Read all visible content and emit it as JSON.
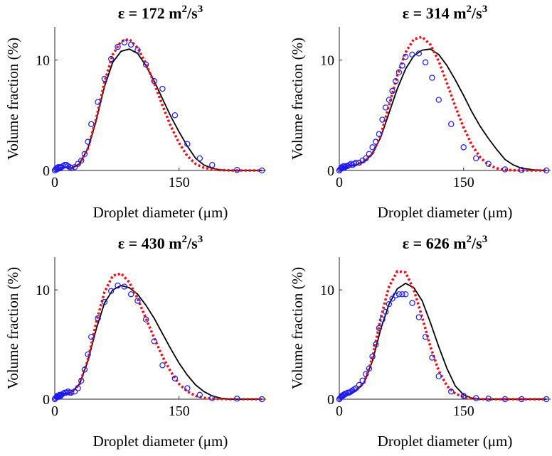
{
  "chart_data": [
    {
      "type": "line",
      "title": "ε = 172 m²/s³",
      "title_parts": [
        "ε = 172 m",
        "2",
        "/s",
        "3"
      ],
      "xlabel": "Droplet diameter (μm)",
      "ylabel": "Volume fraction (%)",
      "xlim": [
        0,
        255
      ],
      "ylim": [
        0,
        13
      ],
      "xticks": [
        0,
        150
      ],
      "yticks": [
        0,
        10
      ],
      "series": [
        {
          "style": "line",
          "color": "#000000",
          "x": [
            0,
            10,
            20,
            30,
            40,
            50,
            60,
            70,
            80,
            90,
            100,
            110,
            120,
            130,
            140,
            150,
            160,
            170,
            180,
            190,
            200,
            210,
            220,
            235,
            250
          ],
          "y": [
            0,
            0.3,
            0.2,
            0.6,
            2.0,
            4.5,
            7.6,
            9.8,
            10.8,
            11.0,
            10.6,
            9.5,
            8.1,
            6.5,
            4.9,
            3.5,
            2.2,
            1.1,
            0.5,
            0.2,
            0.05,
            0,
            0,
            0,
            0
          ]
        },
        {
          "style": "dotted",
          "color": "#e8141b",
          "x": [
            0,
            10,
            20,
            30,
            40,
            50,
            60,
            70,
            80,
            90,
            100,
            110,
            120,
            130,
            140,
            150,
            160,
            170,
            180,
            190,
            200,
            215,
            235,
            250
          ],
          "y": [
            0,
            0.3,
            0.2,
            0.6,
            2.0,
            4.7,
            8.0,
            10.5,
            11.7,
            11.9,
            11.1,
            9.7,
            7.9,
            5.9,
            4.0,
            2.5,
            1.3,
            0.6,
            0.25,
            0.1,
            0.03,
            0,
            0,
            0
          ]
        },
        {
          "style": "markers",
          "color": "#1a1aff",
          "x": [
            0,
            1,
            2,
            3,
            4,
            5,
            6,
            7,
            8,
            10,
            12,
            14,
            16,
            18,
            20,
            24,
            28,
            32,
            36,
            40,
            44,
            52,
            60,
            68,
            76,
            84,
            92,
            100,
            110,
            120,
            130,
            145,
            160,
            175,
            190,
            220,
            250
          ],
          "y": [
            0,
            0.1,
            0.2,
            0.1,
            0.3,
            0.2,
            0.3,
            0.2,
            0.3,
            0.4,
            0.5,
            0.5,
            0.4,
            0.3,
            0.2,
            0.3,
            0.6,
            0.9,
            1.5,
            2.6,
            4.2,
            6.2,
            8.3,
            10.1,
            11.2,
            11.6,
            11.4,
            10.9,
            9.6,
            8.1,
            7.4,
            5.0,
            2.4,
            1.1,
            0.5,
            0.05,
            0
          ]
        }
      ]
    },
    {
      "type": "line",
      "title": "ε = 314 m²/s³",
      "title_parts": [
        "ε = 314 m",
        "2",
        "/s",
        "3"
      ],
      "xlabel": "Droplet diameter (μm)",
      "ylabel": "Volume fraction (%)",
      "xlim": [
        0,
        255
      ],
      "ylim": [
        0,
        13
      ],
      "xticks": [
        0,
        150
      ],
      "yticks": [
        0,
        10
      ],
      "series": [
        {
          "style": "line",
          "color": "#000000",
          "x": [
            0,
            10,
            20,
            30,
            40,
            50,
            60,
            70,
            80,
            90,
            100,
            110,
            120,
            130,
            140,
            150,
            160,
            170,
            180,
            190,
            200,
            210,
            220,
            235,
            250
          ],
          "y": [
            0,
            0.4,
            0.5,
            0.8,
            1.5,
            3.0,
            5.2,
            7.4,
            9.2,
            10.4,
            10.9,
            11.0,
            10.5,
            9.5,
            8.2,
            6.8,
            5.3,
            4.0,
            2.9,
            1.9,
            1.0,
            0.5,
            0.2,
            0.05,
            0
          ]
        },
        {
          "style": "dotted",
          "color": "#e8141b",
          "x": [
            0,
            10,
            20,
            30,
            40,
            50,
            60,
            70,
            80,
            90,
            100,
            110,
            120,
            130,
            140,
            150,
            160,
            170,
            180,
            190,
            200,
            215,
            235,
            250
          ],
          "y": [
            0,
            0.4,
            0.5,
            0.8,
            1.5,
            3.2,
            5.9,
            8.6,
            10.7,
            11.9,
            12.1,
            11.4,
            9.9,
            7.9,
            5.8,
            3.9,
            2.3,
            1.2,
            0.5,
            0.2,
            0.05,
            0,
            0,
            0
          ]
        },
        {
          "style": "markers",
          "color": "#1a1aff",
          "x": [
            0,
            1,
            2,
            3,
            4,
            5,
            6,
            7,
            8,
            10,
            12,
            14,
            16,
            18,
            20,
            24,
            28,
            32,
            36,
            40,
            44,
            48,
            52,
            56,
            60,
            64,
            68,
            72,
            76,
            80,
            88,
            96,
            104,
            112,
            120,
            135,
            150,
            165,
            180,
            200,
            220,
            250
          ],
          "y": [
            0,
            0.1,
            0.2,
            0.3,
            0.2,
            0.4,
            0.3,
            0.3,
            0.4,
            0.4,
            0.5,
            0.6,
            0.5,
            0.6,
            0.7,
            0.7,
            0.9,
            1.1,
            1.5,
            2.1,
            2.6,
            3.3,
            4.6,
            5.7,
            6.4,
            7.2,
            8.1,
            8.9,
            9.5,
            10.3,
            10.5,
            10.6,
            9.8,
            8.4,
            6.4,
            4.2,
            2.1,
            1.1,
            0.6,
            0.1,
            0.05,
            0
          ]
        }
      ]
    },
    {
      "type": "line",
      "title": "ε = 430 m²/s³",
      "title_parts": [
        "ε = 430 m",
        "2",
        "/s",
        "3"
      ],
      "xlabel": "Droplet diameter (μm)",
      "ylabel": "Volume fraction (%)",
      "xlim": [
        0,
        255
      ],
      "ylim": [
        0,
        13
      ],
      "xticks": [
        0,
        150
      ],
      "yticks": [
        0,
        10
      ],
      "series": [
        {
          "style": "line",
          "color": "#000000",
          "x": [
            0,
            10,
            20,
            30,
            40,
            50,
            60,
            70,
            80,
            90,
            100,
            110,
            120,
            130,
            140,
            150,
            160,
            170,
            180,
            190,
            200,
            210,
            220,
            235,
            250
          ],
          "y": [
            0,
            0.5,
            0.6,
            1.4,
            3.5,
            6.4,
            8.8,
            10.0,
            10.4,
            10.2,
            9.6,
            8.6,
            7.4,
            6.0,
            4.6,
            3.3,
            2.2,
            1.3,
            0.7,
            0.3,
            0.1,
            0,
            0,
            0,
            0
          ]
        },
        {
          "style": "dotted",
          "color": "#e8141b",
          "x": [
            0,
            10,
            20,
            30,
            40,
            50,
            60,
            70,
            80,
            90,
            100,
            110,
            120,
            130,
            140,
            150,
            160,
            170,
            180,
            190,
            200,
            215,
            235,
            250
          ],
          "y": [
            0,
            0.5,
            0.6,
            1.4,
            3.6,
            7.0,
            9.8,
            11.3,
            11.5,
            10.7,
            9.2,
            7.4,
            5.6,
            3.9,
            2.5,
            1.4,
            0.7,
            0.3,
            0.12,
            0.05,
            0.02,
            0,
            0,
            0
          ]
        },
        {
          "style": "markers",
          "color": "#1a1aff",
          "x": [
            0,
            1,
            2,
            3,
            4,
            5,
            6,
            7,
            8,
            10,
            12,
            14,
            16,
            18,
            20,
            24,
            28,
            32,
            36,
            40,
            44,
            52,
            60,
            68,
            76,
            84,
            92,
            100,
            110,
            120,
            130,
            145,
            160,
            175,
            190,
            220,
            250
          ],
          "y": [
            0,
            0.1,
            0.2,
            0.3,
            0.2,
            0.3,
            0.4,
            0.3,
            0.4,
            0.5,
            0.6,
            0.6,
            0.7,
            0.6,
            0.6,
            0.7,
            1.0,
            1.7,
            2.7,
            4.1,
            5.7,
            7.4,
            8.9,
            9.9,
            10.4,
            10.3,
            9.6,
            9.0,
            7.3,
            5.3,
            3.1,
            1.9,
            1.0,
            0.4,
            0.1,
            0.05,
            0
          ]
        }
      ]
    },
    {
      "type": "line",
      "title": "ε = 626 m²/s³",
      "title_parts": [
        "ε = 626 m",
        "2",
        "/s",
        "3"
      ],
      "xlabel": "Droplet diameter (μm)",
      "ylabel": "Volume fraction (%)",
      "xlim": [
        0,
        255
      ],
      "ylim": [
        0,
        13
      ],
      "xticks": [
        0,
        150
      ],
      "yticks": [
        0,
        10
      ],
      "series": [
        {
          "style": "line",
          "color": "#000000",
          "x": [
            0,
            10,
            20,
            30,
            40,
            50,
            60,
            70,
            80,
            90,
            100,
            110,
            120,
            130,
            140,
            150,
            160,
            170,
            180,
            190,
            200,
            210,
            220,
            235,
            250
          ],
          "y": [
            0,
            0.4,
            0.8,
            1.5,
            3.5,
            6.4,
            8.7,
            10.1,
            10.6,
            10.2,
            9.0,
            7.0,
            4.8,
            2.8,
            1.2,
            0.4,
            0.1,
            0,
            0,
            0,
            0,
            0,
            0,
            0,
            0
          ]
        },
        {
          "style": "dotted",
          "color": "#e8141b",
          "x": [
            0,
            10,
            20,
            30,
            40,
            50,
            60,
            70,
            80,
            90,
            100,
            110,
            120,
            130,
            140,
            150,
            160,
            170,
            180,
            190,
            200,
            215,
            235,
            250
          ],
          "y": [
            0,
            0.4,
            0.8,
            1.5,
            3.8,
            7.4,
            10.3,
            11.7,
            11.6,
            10.0,
            7.5,
            4.8,
            2.6,
            1.2,
            0.5,
            0.2,
            0.05,
            0,
            0,
            0,
            0,
            0,
            0,
            0
          ]
        },
        {
          "style": "markers",
          "color": "#1a1aff",
          "x": [
            0,
            1,
            2,
            3,
            4,
            5,
            6,
            7,
            8,
            10,
            12,
            14,
            16,
            18,
            20,
            24,
            28,
            32,
            36,
            40,
            44,
            48,
            52,
            56,
            60,
            64,
            68,
            72,
            76,
            80,
            88,
            96,
            104,
            112,
            120,
            135,
            150,
            165,
            180,
            200,
            220,
            250
          ],
          "y": [
            0,
            0.1,
            0.2,
            0.3,
            0.3,
            0.4,
            0.4,
            0.5,
            0.5,
            0.6,
            0.6,
            0.7,
            0.8,
            0.9,
            1.0,
            1.3,
            1.7,
            2.3,
            2.8,
            3.9,
            5.0,
            6.5,
            7.3,
            8.0,
            8.7,
            9.2,
            9.5,
            9.6,
            9.6,
            9.6,
            8.8,
            7.5,
            5.7,
            3.8,
            2.1,
            0.7,
            0.3,
            0.1,
            0.05,
            0,
            0,
            0
          ]
        }
      ]
    }
  ]
}
